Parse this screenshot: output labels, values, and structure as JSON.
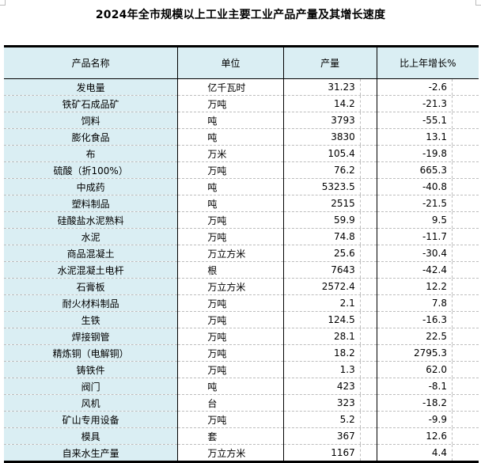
{
  "title": "2024年全市规模以上工业主要工业产品产量及其增长速度",
  "headers": [
    "产品名称",
    "单位",
    "产量",
    "比上年增长%"
  ],
  "rows": [
    [
      "发电量",
      "亿千瓦时",
      "31.23",
      "-2.6"
    ],
    [
      "铁矿石成品矿",
      "万吨",
      "14.2",
      "-21.3"
    ],
    [
      "饲料",
      "吨",
      "3793",
      "-55.1"
    ],
    [
      "膨化食品",
      "吨",
      "3830",
      "13.1"
    ],
    [
      "布",
      "万米",
      "105.4",
      "-19.8"
    ],
    [
      "硫酸（折100%）",
      "万吨",
      "76.2",
      "665.3"
    ],
    [
      "中成药",
      "吨",
      "5323.5",
      "-40.8"
    ],
    [
      "塑料制品",
      "吨",
      "2515",
      "-21.5"
    ],
    [
      "硅酸盐水泥熟料",
      "万吨",
      "59.9",
      "9.5"
    ],
    [
      "水泥",
      "万吨",
      "74.8",
      "-11.7"
    ],
    [
      "商品混凝土",
      "万立方米",
      "25.6",
      "-30.4"
    ],
    [
      "水泥混凝土电杆",
      "根",
      "7643",
      "-42.4"
    ],
    [
      "石膏板",
      "万立方米",
      "2572.4",
      "12.2"
    ],
    [
      "耐火材料制品",
      "万吨",
      "2.1",
      "7.8"
    ],
    [
      "生铁",
      "万吨",
      "124.5",
      "-16.3"
    ],
    [
      "焊接钢管",
      "万吨",
      "28.1",
      "22.5"
    ],
    [
      "精炼铜（电解铜）",
      "万吨",
      "18.2",
      "2795.3"
    ],
    [
      "铸铁件",
      "万吨",
      "1.3",
      "62.0"
    ],
    [
      "阀门",
      "吨",
      "423",
      "-8.1"
    ],
    [
      "风机",
      "台",
      "323",
      "-18.2"
    ],
    [
      "矿山专用设备",
      "万吨",
      "5.2",
      "-9.9"
    ],
    [
      "模具",
      "套",
      "367",
      "12.6"
    ],
    [
      "自来水生产量",
      "万立方米",
      "1167",
      "4.4"
    ]
  ]
}
